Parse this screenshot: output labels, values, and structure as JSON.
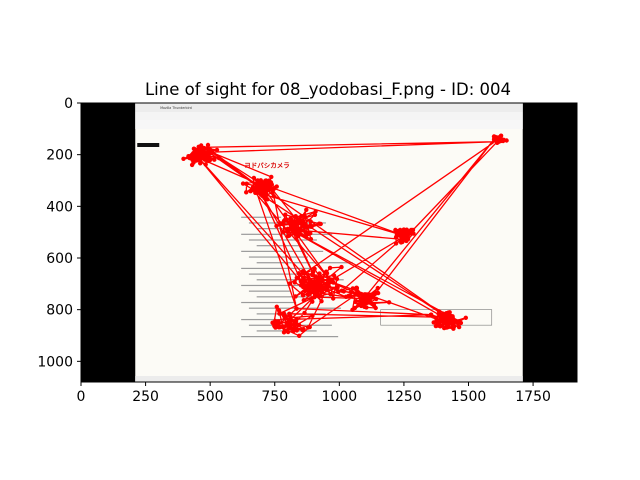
{
  "chart_data": {
    "type": "scatter",
    "title": "Line of sight for 08_yodobasi_F.png - ID: 004",
    "xlabel": "",
    "ylabel": "",
    "xlim": [
      0,
      1920
    ],
    "ylim": [
      1080,
      0
    ],
    "y_inverted": true,
    "grid": false,
    "x_ticks": [
      0,
      250,
      500,
      750,
      1000,
      1250,
      1500,
      1750
    ],
    "y_ticks": [
      0,
      200,
      400,
      600,
      800,
      1000
    ],
    "series_color": "#ff0000",
    "background_image": {
      "description_text": [
        "ヨドバシカメラ",
        "Mozilla Thunderbird"
      ],
      "x_range": [
        210,
        1710
      ],
      "letterbox_color": "#000000"
    },
    "clusters": [
      {
        "cx": 470,
        "cy": 200,
        "spread": 60,
        "n": 70
      },
      {
        "cx": 700,
        "cy": 330,
        "spread": 60,
        "n": 70
      },
      {
        "cx": 850,
        "cy": 470,
        "spread": 80,
        "n": 60
      },
      {
        "cx": 1250,
        "cy": 510,
        "spread": 45,
        "n": 40
      },
      {
        "cx": 1620,
        "cy": 140,
        "spread": 30,
        "n": 20
      },
      {
        "cx": 900,
        "cy": 700,
        "spread": 110,
        "n": 80
      },
      {
        "cx": 1420,
        "cy": 840,
        "spread": 60,
        "n": 60
      },
      {
        "cx": 800,
        "cy": 850,
        "spread": 90,
        "n": 40
      },
      {
        "cx": 1100,
        "cy": 760,
        "spread": 90,
        "n": 40
      }
    ]
  }
}
